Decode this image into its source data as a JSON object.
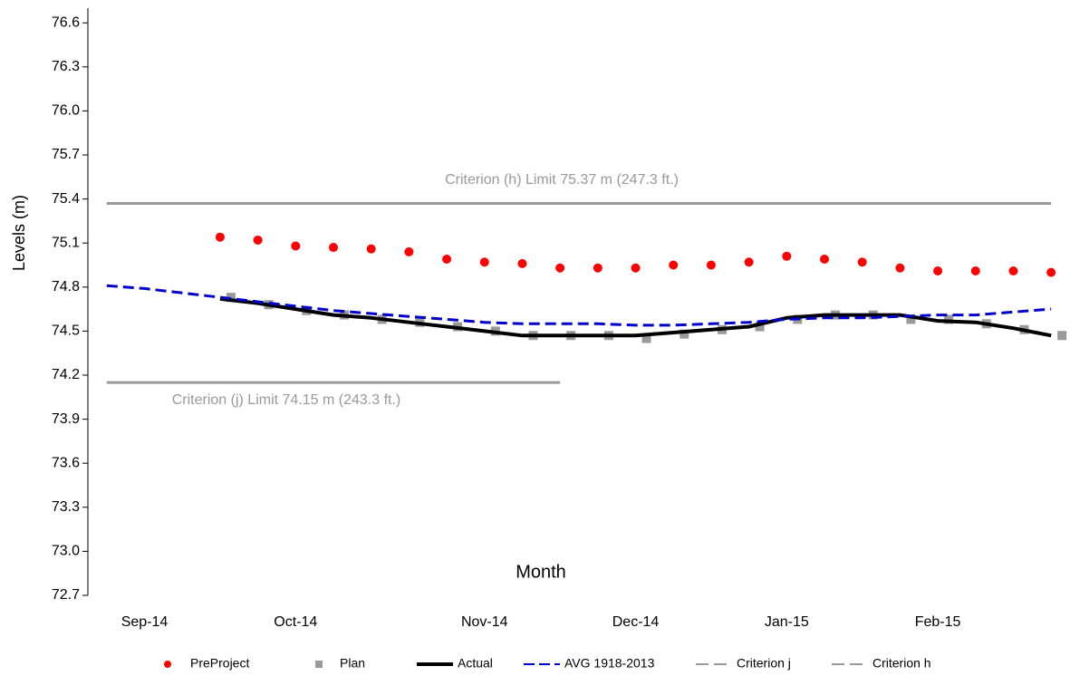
{
  "chart_data": {
    "type": "line",
    "x_label": "Month",
    "y_label": "Levels (m)",
    "categories": [
      null,
      "Sep-14",
      null,
      null,
      null,
      "Oct-14",
      null,
      null,
      null,
      null,
      "Nov-14",
      null,
      null,
      null,
      "Dec-14",
      null,
      null,
      null,
      "Jan-15",
      null,
      null,
      null,
      "Feb-15",
      null,
      null,
      null
    ],
    "ylim": [
      72.7,
      76.7
    ],
    "yticks": [
      {
        "value": 72.7,
        "label": "72.7"
      },
      {
        "value": 73,
        "label": "73.0"
      },
      73.3,
      73.6,
      73.9,
      74.2,
      74.5,
      74.8,
      75.1,
      75.4,
      75.7,
      {
        "value": 76,
        "label": "76.0"
      },
      76.3,
      76.6
    ],
    "series": [
      {
        "name": "PreProject",
        "style": "dot",
        "color": "#ff0000",
        "values": [
          null,
          null,
          null,
          75.14,
          75.12,
          75.08,
          75.07,
          75.06,
          75.04,
          74.99,
          74.97,
          74.96,
          74.93,
          74.93,
          74.93,
          74.95,
          74.95,
          74.97,
          75.01,
          74.99,
          74.97,
          74.93,
          74.91,
          74.91,
          74.91,
          74.9
        ]
      },
      {
        "name": "Plan",
        "style": "square",
        "color": "#999999",
        "values": [
          null,
          null,
          null,
          74.73,
          74.68,
          74.64,
          74.61,
          74.58,
          74.56,
          74.53,
          74.5,
          74.47,
          74.47,
          74.47,
          74.45,
          74.48,
          74.51,
          74.53,
          74.58,
          74.61,
          74.61,
          74.58,
          74.58,
          74.55,
          74.51,
          74.47
        ]
      },
      {
        "name": "Actual",
        "style": "solid",
        "color": "#000000",
        "values": [
          null,
          null,
          null,
          74.72,
          74.69,
          74.65,
          74.61,
          74.59,
          74.56,
          74.53,
          74.5,
          74.47,
          74.47,
          74.47,
          74.47,
          74.49,
          74.51,
          74.53,
          74.59,
          74.61,
          74.61,
          74.61,
          74.57,
          74.56,
          74.52,
          74.47
        ]
      },
      {
        "name": "AVG 1918-2013",
        "style": "dashed",
        "color": "#0000cc",
        "values": [
          74.81,
          74.79,
          74.76,
          74.73,
          74.7,
          74.67,
          74.64,
          74.62,
          74.6,
          74.58,
          74.56,
          74.55,
          74.55,
          74.55,
          74.54,
          74.54,
          74.55,
          74.56,
          74.58,
          74.59,
          74.59,
          74.6,
          74.61,
          74.61,
          74.63,
          74.65
        ]
      },
      {
        "name": "Criterion j",
        "style": "limit",
        "color": "#999999",
        "values": [
          74.15,
          74.15,
          74.15,
          74.15,
          74.15,
          74.15,
          74.15,
          74.15,
          74.15,
          74.15,
          74.15,
          74.15,
          74.15,
          null,
          null,
          null,
          null,
          null,
          null,
          null,
          null,
          null,
          null,
          null,
          null,
          null
        ]
      },
      {
        "name": "Criterion h",
        "style": "limit",
        "color": "#999999",
        "values": [
          75.37,
          75.37,
          75.37,
          75.37,
          75.37,
          75.37,
          75.37,
          75.37,
          75.37,
          75.37,
          75.37,
          75.37,
          75.37,
          75.37,
          75.37,
          75.37,
          75.37,
          75.37,
          75.37,
          75.37,
          75.37,
          75.37,
          75.37,
          75.37,
          75.37,
          75.37
        ]
      }
    ],
    "annotations": [
      "Criterion (h) Limit 75.37  m (247.3 ft.)",
      "Criterion (j) Limit 74.15 m (243.3 ft.)"
    ]
  }
}
